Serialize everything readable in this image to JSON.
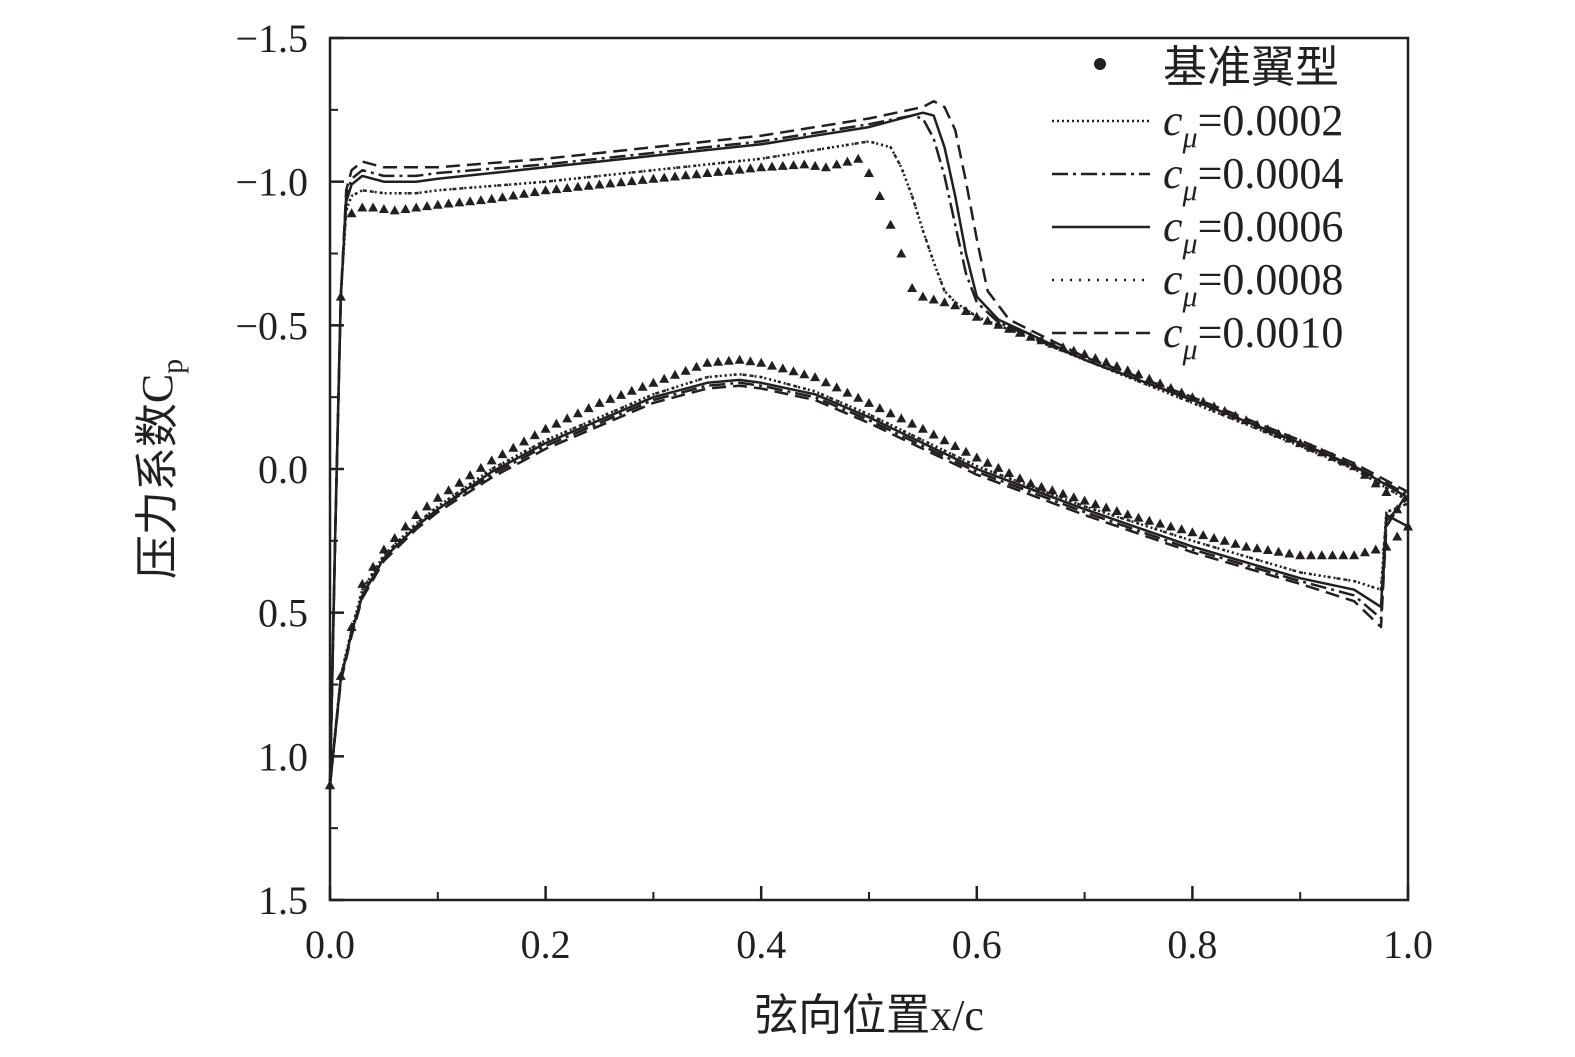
{
  "chart_data": {
    "type": "line",
    "xlabel": "弦向位置x/c",
    "ylabel": "压力系数C",
    "ylabel_sub": "p",
    "xlim": [
      0.0,
      1.0
    ],
    "ylim": [
      -1.5,
      1.5
    ],
    "y_inverted": true,
    "x_ticks": [
      "0.0",
      "0.2",
      "0.4",
      "0.6",
      "0.8",
      "1.0"
    ],
    "y_ticks": [
      "−1.5",
      "−1.0",
      "−0.5",
      "0.0",
      "0.5",
      "1.0",
      "1.5"
    ],
    "grid": false,
    "legend_position": "top-right",
    "series": [
      {
        "name": "基准翼型",
        "marker": "triangle",
        "upper": {
          "x": [
            0,
            0.005,
            0.01,
            0.015,
            0.02,
            0.025,
            0.03,
            0.04,
            0.06,
            0.08,
            0.1,
            0.15,
            0.2,
            0.25,
            0.3,
            0.35,
            0.4,
            0.44,
            0.46,
            0.48,
            0.49,
            0.5,
            0.51,
            0.52,
            0.53,
            0.54,
            0.55,
            0.56,
            0.57,
            0.58,
            0.6,
            0.65,
            0.7,
            0.75,
            0.8,
            0.85,
            0.9,
            0.95,
            0.98,
            1.0
          ],
          "y": [
            1.1,
            0.2,
            -0.6,
            -0.85,
            -0.89,
            -0.9,
            -0.91,
            -0.91,
            -0.9,
            -0.91,
            -0.92,
            -0.94,
            -0.97,
            -0.99,
            -1.01,
            -1.03,
            -1.05,
            -1.06,
            -1.05,
            -1.07,
            -1.08,
            -1.03,
            -0.95,
            -0.85,
            -0.75,
            -0.63,
            -0.6,
            -0.59,
            -0.58,
            -0.57,
            -0.53,
            -0.46,
            -0.4,
            -0.33,
            -0.25,
            -0.17,
            -0.09,
            -0.01,
            0.08,
            0.2
          ]
        },
        "lower": {
          "x": [
            0,
            0.005,
            0.01,
            0.02,
            0.03,
            0.05,
            0.08,
            0.1,
            0.15,
            0.2,
            0.25,
            0.3,
            0.35,
            0.38,
            0.4,
            0.45,
            0.5,
            0.55,
            0.6,
            0.65,
            0.7,
            0.75,
            0.8,
            0.85,
            0.9,
            0.95,
            0.98,
            1.0
          ],
          "y": [
            1.1,
            0.9,
            0.72,
            0.55,
            0.4,
            0.28,
            0.16,
            0.1,
            -0.03,
            -0.14,
            -0.23,
            -0.3,
            -0.37,
            -0.38,
            -0.37,
            -0.32,
            -0.23,
            -0.14,
            -0.04,
            0.05,
            0.11,
            0.17,
            0.22,
            0.27,
            0.3,
            0.3,
            0.27,
            0.2
          ]
        }
      },
      {
        "name": "=0.0002",
        "marker_symbol": "c",
        "marker_sub": "μ",
        "line": "dotted",
        "upper": {
          "x": [
            0,
            0.005,
            0.01,
            0.015,
            0.02,
            0.03,
            0.05,
            0.08,
            0.1,
            0.2,
            0.3,
            0.4,
            0.45,
            0.5,
            0.52,
            0.53,
            0.54,
            0.55,
            0.56,
            0.57,
            0.58,
            0.6,
            0.7,
            0.8,
            0.9,
            0.95,
            1.0
          ],
          "y": [
            1.1,
            0.2,
            -0.6,
            -0.9,
            -0.95,
            -0.97,
            -0.96,
            -0.96,
            -0.97,
            -1.0,
            -1.04,
            -1.08,
            -1.11,
            -1.14,
            -1.12,
            -1.05,
            -0.95,
            -0.83,
            -0.72,
            -0.62,
            -0.58,
            -0.53,
            -0.38,
            -0.23,
            -0.08,
            0.0,
            0.11
          ]
        },
        "lower": {
          "x": [
            0,
            0.01,
            0.02,
            0.03,
            0.05,
            0.08,
            0.1,
            0.15,
            0.2,
            0.3,
            0.35,
            0.38,
            0.4,
            0.45,
            0.5,
            0.6,
            0.7,
            0.8,
            0.9,
            0.95,
            0.975,
            0.98,
            1.0
          ],
          "y": [
            1.1,
            0.72,
            0.56,
            0.42,
            0.3,
            0.19,
            0.13,
            0.0,
            -0.1,
            -0.26,
            -0.32,
            -0.33,
            -0.32,
            -0.27,
            -0.19,
            -0.01,
            0.13,
            0.25,
            0.36,
            0.39,
            0.42,
            0.15,
            0.12
          ]
        }
      },
      {
        "name": "=0.0004",
        "marker_symbol": "c",
        "marker_sub": "μ",
        "line": "dash-dot",
        "upper": {
          "x": [
            0,
            0.005,
            0.01,
            0.015,
            0.02,
            0.03,
            0.05,
            0.08,
            0.1,
            0.2,
            0.3,
            0.4,
            0.45,
            0.5,
            0.54,
            0.55,
            0.56,
            0.57,
            0.58,
            0.59,
            0.6,
            0.62,
            0.7,
            0.8,
            0.9,
            0.95,
            1.0
          ],
          "y": [
            1.1,
            0.2,
            -0.6,
            -0.95,
            -1.01,
            -1.04,
            -1.02,
            -1.02,
            -1.03,
            -1.06,
            -1.1,
            -1.14,
            -1.17,
            -1.2,
            -1.23,
            -1.22,
            -1.15,
            -1.02,
            -0.85,
            -0.68,
            -0.58,
            -0.51,
            -0.38,
            -0.24,
            -0.09,
            -0.01,
            0.09
          ]
        },
        "lower": {
          "x": [
            0,
            0.01,
            0.02,
            0.03,
            0.05,
            0.08,
            0.1,
            0.15,
            0.2,
            0.3,
            0.35,
            0.38,
            0.4,
            0.45,
            0.5,
            0.6,
            0.7,
            0.8,
            0.9,
            0.95,
            0.975,
            0.98,
            1.0
          ],
          "y": [
            1.1,
            0.73,
            0.57,
            0.44,
            0.31,
            0.2,
            0.14,
            0.02,
            -0.08,
            -0.24,
            -0.29,
            -0.3,
            -0.29,
            -0.25,
            -0.17,
            0.01,
            0.15,
            0.28,
            0.39,
            0.44,
            0.52,
            0.18,
            0.1
          ]
        }
      },
      {
        "name": "=0.0006",
        "marker_symbol": "c",
        "marker_sub": "μ",
        "line": "solid",
        "upper": {
          "x": [
            0,
            0.005,
            0.01,
            0.015,
            0.02,
            0.03,
            0.05,
            0.08,
            0.1,
            0.2,
            0.3,
            0.4,
            0.45,
            0.5,
            0.55,
            0.56,
            0.57,
            0.58,
            0.59,
            0.6,
            0.62,
            0.7,
            0.8,
            0.9,
            0.95,
            1.0
          ],
          "y": [
            1.1,
            0.2,
            -0.6,
            -0.93,
            -0.99,
            -1.02,
            -1.0,
            -1.0,
            -1.01,
            -1.05,
            -1.09,
            -1.13,
            -1.16,
            -1.19,
            -1.24,
            -1.23,
            -1.12,
            -0.95,
            -0.75,
            -0.6,
            -0.52,
            -0.38,
            -0.24,
            -0.09,
            -0.01,
            0.1
          ]
        },
        "lower": {
          "x": [
            0,
            0.01,
            0.02,
            0.03,
            0.05,
            0.08,
            0.1,
            0.15,
            0.2,
            0.3,
            0.35,
            0.38,
            0.4,
            0.45,
            0.5,
            0.6,
            0.7,
            0.8,
            0.9,
            0.95,
            0.975,
            0.98,
            1.0
          ],
          "y": [
            1.1,
            0.73,
            0.57,
            0.44,
            0.31,
            0.2,
            0.14,
            0.01,
            -0.09,
            -0.25,
            -0.3,
            -0.31,
            -0.3,
            -0.26,
            -0.18,
            0.0,
            0.14,
            0.27,
            0.38,
            0.42,
            0.48,
            0.16,
            0.2
          ]
        }
      },
      {
        "name": "=0.0008",
        "marker_symbol": "c",
        "marker_sub": "μ",
        "line": "dotted-sparse",
        "upper": {
          "x": [
            0,
            0.005,
            0.01,
            0.015,
            0.02,
            0.03,
            0.05,
            0.08,
            0.1,
            0.2,
            0.3,
            0.4,
            0.45,
            0.5,
            0.52,
            0.53,
            0.54,
            0.55,
            0.56,
            0.57,
            0.58,
            0.6,
            0.7,
            0.8,
            0.9,
            0.95,
            1.0
          ],
          "y": [
            1.1,
            0.2,
            -0.6,
            -0.9,
            -0.95,
            -0.97,
            -0.96,
            -0.96,
            -0.97,
            -1.0,
            -1.04,
            -1.08,
            -1.11,
            -1.14,
            -1.12,
            -1.05,
            -0.95,
            -0.83,
            -0.72,
            -0.62,
            -0.58,
            -0.53,
            -0.38,
            -0.23,
            -0.08,
            0.0,
            0.11
          ]
        },
        "lower": {
          "x": [
            0,
            0.01,
            0.02,
            0.03,
            0.05,
            0.08,
            0.1,
            0.15,
            0.2,
            0.3,
            0.35,
            0.38,
            0.4,
            0.45,
            0.5,
            0.6,
            0.7,
            0.8,
            0.9,
            0.95,
            0.975,
            0.98,
            1.0
          ],
          "y": [
            1.1,
            0.72,
            0.56,
            0.42,
            0.3,
            0.19,
            0.13,
            0.0,
            -0.1,
            -0.26,
            -0.32,
            -0.33,
            -0.32,
            -0.27,
            -0.19,
            -0.01,
            0.13,
            0.25,
            0.36,
            0.39,
            0.42,
            0.15,
            0.12
          ]
        }
      },
      {
        "name": "=0.0010",
        "marker_symbol": "c",
        "marker_sub": "μ",
        "line": "dashed",
        "upper": {
          "x": [
            0,
            0.005,
            0.01,
            0.015,
            0.02,
            0.03,
            0.05,
            0.08,
            0.1,
            0.2,
            0.3,
            0.4,
            0.45,
            0.5,
            0.55,
            0.56,
            0.57,
            0.58,
            0.59,
            0.6,
            0.61,
            0.63,
            0.7,
            0.8,
            0.9,
            0.95,
            1.0
          ],
          "y": [
            1.1,
            0.2,
            -0.6,
            -0.97,
            -1.04,
            -1.07,
            -1.05,
            -1.05,
            -1.05,
            -1.08,
            -1.12,
            -1.16,
            -1.19,
            -1.22,
            -1.26,
            -1.28,
            -1.26,
            -1.18,
            -1.0,
            -0.8,
            -0.62,
            -0.52,
            -0.39,
            -0.25,
            -0.1,
            -0.02,
            0.08
          ]
        },
        "lower": {
          "x": [
            0,
            0.01,
            0.02,
            0.03,
            0.05,
            0.08,
            0.1,
            0.15,
            0.2,
            0.3,
            0.35,
            0.38,
            0.4,
            0.45,
            0.5,
            0.6,
            0.7,
            0.8,
            0.9,
            0.95,
            0.975,
            0.98,
            1.0
          ],
          "y": [
            1.1,
            0.74,
            0.58,
            0.45,
            0.32,
            0.21,
            0.15,
            0.03,
            -0.07,
            -0.23,
            -0.28,
            -0.29,
            -0.28,
            -0.24,
            -0.16,
            0.02,
            0.16,
            0.29,
            0.4,
            0.46,
            0.55,
            0.2,
            0.08
          ]
        }
      }
    ]
  }
}
